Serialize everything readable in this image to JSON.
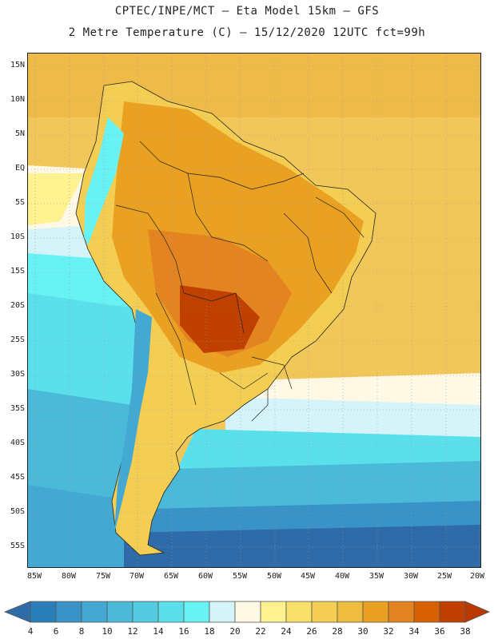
{
  "title_line1": "CPTEC/INPE/MCT –  Eta Model 15km – GFS",
  "title_line2": "2 Metre Temperature (C) – 15/12/2020 12UTC fct=99h",
  "map": {
    "lat_labels": [
      "15N",
      "10N",
      "5N",
      "EQ",
      "5S",
      "10S",
      "15S",
      "20S",
      "25S",
      "30S",
      "35S",
      "40S",
      "45S",
      "50S",
      "55S"
    ],
    "lon_labels": [
      "85W",
      "80W",
      "75W",
      "70W",
      "65W",
      "60W",
      "55W",
      "50W",
      "45W",
      "40W",
      "35W",
      "30W",
      "25W",
      "20W"
    ]
  },
  "colorbar": {
    "labels": [
      "4",
      "6",
      "8",
      "10",
      "12",
      "14",
      "16",
      "18",
      "20",
      "22",
      "24",
      "26",
      "28",
      "30",
      "32",
      "34",
      "36",
      "38"
    ],
    "colors": [
      "#2f6aa9",
      "#2b7fb8",
      "#3a93c6",
      "#43a8d2",
      "#4bbad8",
      "#53cbe0",
      "#5ae0ea",
      "#68f2f4",
      "#d4f4fa",
      "#fff8e4",
      "#fdf28f",
      "#f9e069",
      "#f4ce52",
      "#eebc3f",
      "#eaa020",
      "#e48420",
      "#d86000",
      "#c04000",
      "#b83800"
    ]
  }
}
